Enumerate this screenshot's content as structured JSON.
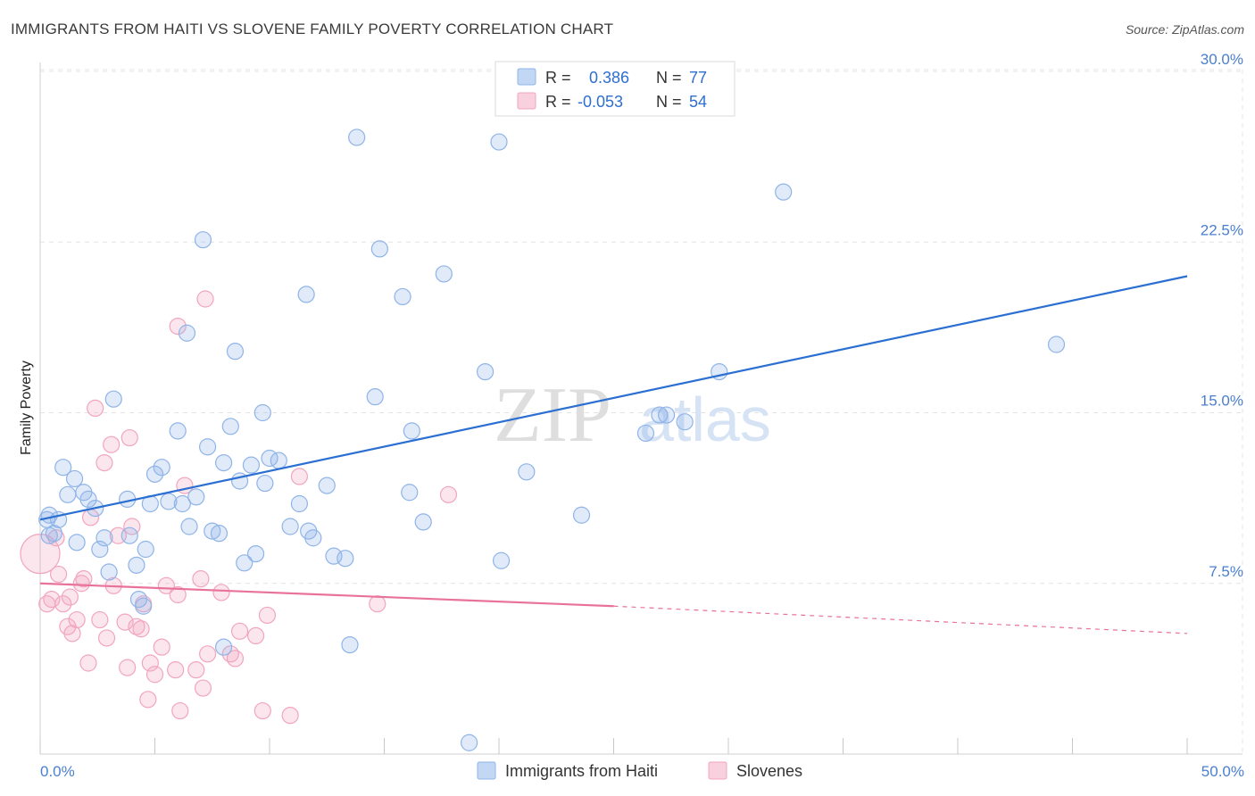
{
  "chart_data": {
    "type": "scatter",
    "title": "IMMIGRANTS FROM HAITI VS SLOVENE FAMILY POVERTY CORRELATION CHART",
    "source": "Source: ZipAtlas.com",
    "xlabel": "",
    "ylabel": "Family Poverty",
    "xlim": [
      0,
      50
    ],
    "ylim": [
      0,
      30
    ],
    "x_tick_labels": [
      "0.0%",
      "50.0%"
    ],
    "y_ticks": [
      7.5,
      15.0,
      22.5,
      30.0
    ],
    "y_tick_labels": [
      "7.5%",
      "15.0%",
      "22.5%",
      "30.0%"
    ],
    "watermark": "ZIPatlas",
    "legend": {
      "rows": [
        {
          "r_label": "R =",
          "r_value": "0.386",
          "n_label": "N =",
          "n_value": "77"
        },
        {
          "r_label": "R =",
          "r_value": "-0.053",
          "n_label": "N =",
          "n_value": "54"
        }
      ]
    },
    "series": [
      {
        "name": "Immigrants from Haiti",
        "color": "#8fb4e8",
        "line_color": "#2a6fd1",
        "trend": {
          "x0": 0,
          "y0": 10.3,
          "x1": 50,
          "y1": 21.0
        },
        "points": [
          [
            0.3,
            10.3
          ],
          [
            0.4,
            10.5
          ],
          [
            0.6,
            9.7
          ],
          [
            0.8,
            10.3
          ],
          [
            1.0,
            12.6
          ],
          [
            1.2,
            11.4
          ],
          [
            1.5,
            12.1
          ],
          [
            1.6,
            9.3
          ],
          [
            1.9,
            11.5
          ],
          [
            2.1,
            11.2
          ],
          [
            2.4,
            10.8
          ],
          [
            2.6,
            9.0
          ],
          [
            2.8,
            9.5
          ],
          [
            3.0,
            8.0
          ],
          [
            3.2,
            15.6
          ],
          [
            3.8,
            11.2
          ],
          [
            3.9,
            9.6
          ],
          [
            4.2,
            8.3
          ],
          [
            4.3,
            6.8
          ],
          [
            4.5,
            6.5
          ],
          [
            4.6,
            9.0
          ],
          [
            4.8,
            11.0
          ],
          [
            5.0,
            12.3
          ],
          [
            5.3,
            12.6
          ],
          [
            5.6,
            11.1
          ],
          [
            6.0,
            14.2
          ],
          [
            6.2,
            11.0
          ],
          [
            6.4,
            18.5
          ],
          [
            6.5,
            10.0
          ],
          [
            6.8,
            11.3
          ],
          [
            7.1,
            22.6
          ],
          [
            7.3,
            13.5
          ],
          [
            7.5,
            9.8
          ],
          [
            7.8,
            9.7
          ],
          [
            8.0,
            12.8
          ],
          [
            8.3,
            14.4
          ],
          [
            8.5,
            17.7
          ],
          [
            8.7,
            12.0
          ],
          [
            8.9,
            8.4
          ],
          [
            9.2,
            12.7
          ],
          [
            9.4,
            8.8
          ],
          [
            9.7,
            15.0
          ],
          [
            9.8,
            11.9
          ],
          [
            10.0,
            13.0
          ],
          [
            10.4,
            12.9
          ],
          [
            10.9,
            10.0
          ],
          [
            11.3,
            11.0
          ],
          [
            11.6,
            20.2
          ],
          [
            11.7,
            9.8
          ],
          [
            11.9,
            9.5
          ],
          [
            12.5,
            11.8
          ],
          [
            12.8,
            8.7
          ],
          [
            13.3,
            8.6
          ],
          [
            13.5,
            4.8
          ],
          [
            13.8,
            27.1
          ],
          [
            14.6,
            15.7
          ],
          [
            14.8,
            22.2
          ],
          [
            15.8,
            20.1
          ],
          [
            16.1,
            11.5
          ],
          [
            16.2,
            14.2
          ],
          [
            16.7,
            10.2
          ],
          [
            17.6,
            21.1
          ],
          [
            18.7,
            0.5
          ],
          [
            19.4,
            16.8
          ],
          [
            20.0,
            26.9
          ],
          [
            20.1,
            8.5
          ],
          [
            21.2,
            12.4
          ],
          [
            23.6,
            10.5
          ],
          [
            26.4,
            14.1
          ],
          [
            27.0,
            14.9
          ],
          [
            27.3,
            14.9
          ],
          [
            28.1,
            14.6
          ],
          [
            29.6,
            16.8
          ],
          [
            32.4,
            24.7
          ],
          [
            44.3,
            18.0
          ],
          [
            8.0,
            4.7
          ],
          [
            0.4,
            9.6
          ]
        ]
      },
      {
        "name": "Slovenes",
        "color": "#f2a5be",
        "line_color": "#e8729a",
        "trend": {
          "x0": 0,
          "y0": 7.5,
          "x1": 25,
          "y1": 6.5,
          "dash_x1": 50,
          "dash_y1": 5.3
        },
        "points": [
          [
            0.0,
            8.8
          ],
          [
            0.3,
            6.6
          ],
          [
            0.5,
            6.8
          ],
          [
            0.7,
            9.5
          ],
          [
            0.8,
            7.9
          ],
          [
            1.0,
            6.6
          ],
          [
            1.2,
            5.6
          ],
          [
            1.3,
            6.9
          ],
          [
            1.4,
            5.3
          ],
          [
            1.6,
            5.9
          ],
          [
            1.8,
            7.5
          ],
          [
            1.9,
            7.7
          ],
          [
            2.1,
            4.0
          ],
          [
            2.2,
            10.4
          ],
          [
            2.4,
            15.2
          ],
          [
            2.6,
            5.9
          ],
          [
            2.8,
            12.8
          ],
          [
            2.9,
            5.1
          ],
          [
            3.1,
            13.6
          ],
          [
            3.2,
            7.4
          ],
          [
            3.4,
            9.6
          ],
          [
            3.7,
            5.8
          ],
          [
            3.8,
            3.8
          ],
          [
            3.9,
            13.9
          ],
          [
            4.0,
            10.0
          ],
          [
            4.2,
            5.6
          ],
          [
            4.4,
            5.5
          ],
          [
            4.5,
            6.6
          ],
          [
            4.7,
            2.4
          ],
          [
            4.8,
            4.0
          ],
          [
            5.0,
            3.5
          ],
          [
            5.3,
            4.7
          ],
          [
            5.5,
            7.4
          ],
          [
            5.9,
            3.7
          ],
          [
            6.0,
            7.0
          ],
          [
            6.1,
            1.9
          ],
          [
            6.3,
            11.8
          ],
          [
            6.8,
            3.7
          ],
          [
            7.0,
            7.7
          ],
          [
            7.1,
            2.9
          ],
          [
            7.2,
            20.0
          ],
          [
            7.3,
            4.4
          ],
          [
            7.9,
            7.1
          ],
          [
            8.3,
            4.4
          ],
          [
            8.5,
            4.2
          ],
          [
            8.7,
            5.4
          ],
          [
            9.4,
            5.2
          ],
          [
            9.7,
            1.9
          ],
          [
            9.9,
            6.1
          ],
          [
            10.9,
            1.7
          ],
          [
            11.3,
            12.2
          ],
          [
            6.0,
            18.8
          ],
          [
            14.7,
            6.6
          ],
          [
            17.8,
            11.4
          ]
        ]
      }
    ],
    "bottom_legend": [
      "Immigrants from Haiti",
      "Slovenes"
    ]
  }
}
